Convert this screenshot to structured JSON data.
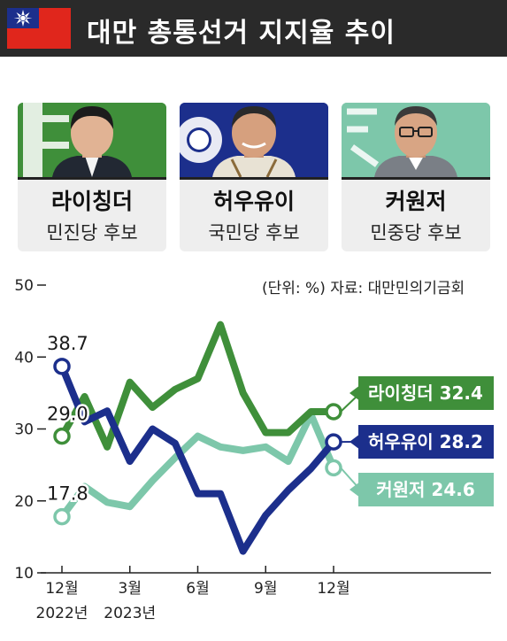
{
  "header": {
    "title": "대만 총통선거 지지율 추이"
  },
  "candidates": [
    {
      "name": "라이칭더",
      "party": "민진당 후보",
      "color": "#3f8f3a"
    },
    {
      "name": "허우유이",
      "party": "국민당 후보",
      "color": "#1c2f8c"
    },
    {
      "name": "커원저",
      "party": "민중당 후보",
      "color": "#7dc7aa"
    }
  ],
  "note": "(단위: %) 자료: 대만민의기금회",
  "chart_data": {
    "type": "line",
    "ylim": [
      10,
      50
    ],
    "y_ticks": [
      "10",
      "20",
      "30",
      "40",
      "50"
    ],
    "x_tick_labels": [
      "12월\n2022년",
      "3월\n2023년",
      "6월",
      "9월",
      "12월"
    ],
    "x_ticks": [
      0,
      3,
      6,
      9,
      12
    ],
    "series": [
      {
        "name": "라이칭더",
        "color": "#3f8f3a",
        "x": [
          0,
          1,
          2,
          3,
          4,
          5,
          6,
          7,
          8,
          9,
          10,
          11,
          12
        ],
        "values": [
          29.0,
          34.5,
          27.5,
          36.5,
          33.0,
          35.5,
          37.0,
          44.5,
          35.0,
          29.5,
          29.5,
          32.4,
          32.4
        ],
        "start_label": "29.0",
        "end_label": "라이칭더 32.4"
      },
      {
        "name": "허우유이",
        "color": "#1c2f8c",
        "x": [
          0,
          1,
          2,
          3,
          4,
          5,
          6,
          7,
          8,
          9,
          10,
          11,
          12
        ],
        "values": [
          38.7,
          31.0,
          32.5,
          25.5,
          30.0,
          28.0,
          21.0,
          21.0,
          13.0,
          18.0,
          21.5,
          24.5,
          28.2
        ],
        "start_label": "38.7",
        "end_label": "허우유이 28.2"
      },
      {
        "name": "커원저",
        "color": "#7dc7aa",
        "x": [
          0,
          1,
          2,
          3,
          4,
          5,
          6,
          7,
          8,
          9,
          10,
          11,
          12
        ],
        "values": [
          17.8,
          22.0,
          19.8,
          19.2,
          22.8,
          26.0,
          29.0,
          27.5,
          27.0,
          27.5,
          25.5,
          32.0,
          24.6
        ],
        "start_label": "17.8",
        "end_label": "커원저 24.6"
      }
    ]
  }
}
